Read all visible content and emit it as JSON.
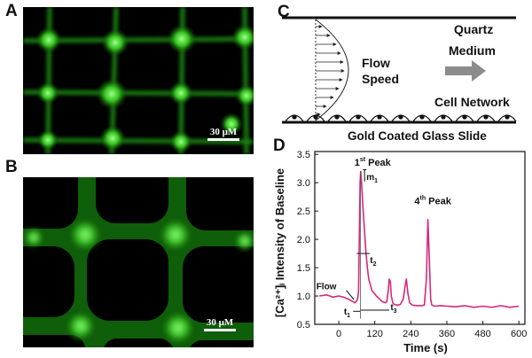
{
  "panels": {
    "a": {
      "letter": "A",
      "scale_label": "30 μM"
    },
    "b": {
      "letter": "B",
      "scale_label": "30 μM"
    },
    "c": {
      "letter": "C",
      "quartz": "Quartz",
      "flow_line1": "Flow",
      "flow_line2": "Speed",
      "medium": "Medium",
      "cell_network": "Cell Network",
      "slide": "Gold Coated Glass Slide"
    },
    "d": {
      "letter": "D"
    }
  },
  "chart_data": {
    "type": "line",
    "xlabel": "Time (s)",
    "ylabel": "[Ca²⁺]ᵢ Intensity of Baseline",
    "xlim": [
      -80,
      620
    ],
    "ylim": [
      0.5,
      3.55
    ],
    "xticks": [
      0,
      120,
      240,
      360,
      480,
      600
    ],
    "yticks": [
      0.5,
      1.0,
      1.5,
      2.0,
      2.5,
      3.0,
      3.5
    ],
    "series": [
      {
        "color": "#d6287d",
        "x": [
          -65,
          -40,
          -20,
          0,
          15,
          30,
          40,
          48,
          53,
          58,
          63,
          66,
          69,
          71,
          73,
          76,
          80,
          85,
          90,
          95,
          100,
          105,
          110,
          118,
          125,
          135,
          145,
          155,
          160,
          165,
          168,
          172,
          175,
          180,
          185,
          195,
          205,
          215,
          220,
          225,
          230,
          236,
          245,
          260,
          275,
          285,
          292,
          297,
          302,
          306,
          310,
          320,
          340,
          360,
          390,
          420,
          450,
          480,
          510,
          540,
          570,
          600
        ],
        "y": [
          1.0,
          1.02,
          0.98,
          1.0,
          0.98,
          0.95,
          0.92,
          0.9,
          0.88,
          0.9,
          0.95,
          1.1,
          2.2,
          3.0,
          3.2,
          3.0,
          2.6,
          2.2,
          1.8,
          1.5,
          1.3,
          1.2,
          1.1,
          1.05,
          1.0,
          0.95,
          0.9,
          0.88,
          0.9,
          1.1,
          1.3,
          1.25,
          1.0,
          0.88,
          0.85,
          0.84,
          0.85,
          0.95,
          1.15,
          1.3,
          1.05,
          0.88,
          0.84,
          0.83,
          0.83,
          0.84,
          1.3,
          2.35,
          1.6,
          0.95,
          0.84,
          0.82,
          0.83,
          0.82,
          0.81,
          0.83,
          0.8,
          0.82,
          0.8,
          0.83,
          0.8,
          0.82
        ]
      }
    ],
    "annotations": {
      "peak1": "1",
      "peak1_sup": "st",
      "peak1_word": " Peak",
      "peak4": "4",
      "peak4_sup": "th",
      "peak4_word": " Peak",
      "m1": "m",
      "m1_sub": "1",
      "t1": "t",
      "t1_sub": "1",
      "t2": "t",
      "t2_sub": "2",
      "t3": "t",
      "t3_sub": "3",
      "flow": "Flow"
    }
  }
}
